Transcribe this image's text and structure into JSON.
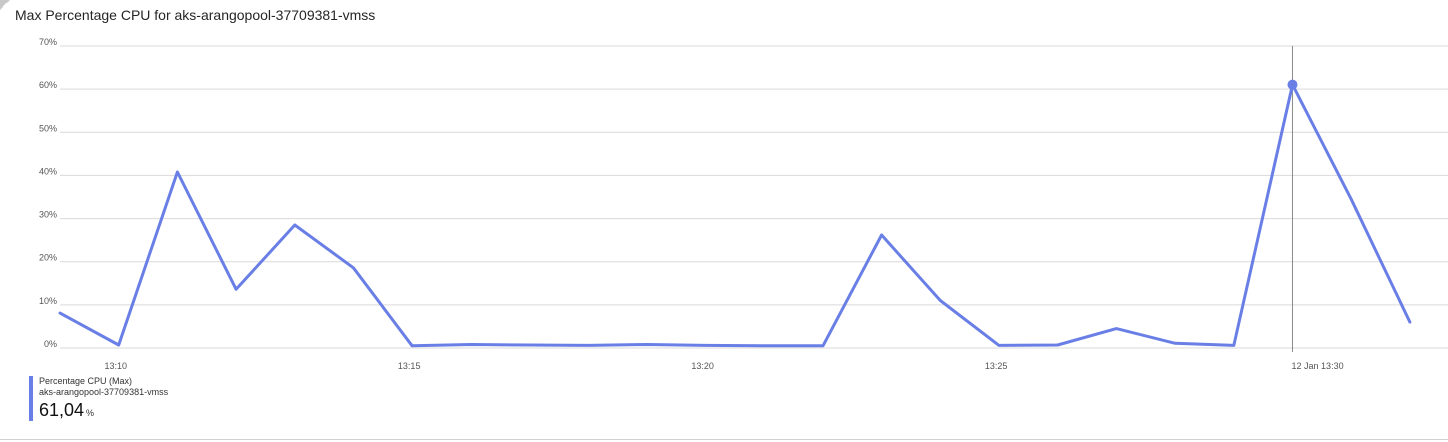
{
  "title": "Max Percentage CPU for aks-arangopool-37709381-vmss",
  "icons": {
    "corner": "pin-icon"
  },
  "colors": {
    "series": "#6a7fe6",
    "grid": "#d9d9d9",
    "crosshair": "#8a8a8a",
    "text": "#252525"
  },
  "legend": {
    "metric": "Percentage CPU (Max)",
    "resource": "aks-arangopool-37709381-vmss",
    "value": "61,04",
    "unit": "%"
  },
  "chart_data": {
    "type": "line",
    "title": "Max Percentage CPU for aks-arangopool-37709381-vmss",
    "xlabel": "",
    "ylabel": "",
    "ylim": [
      0,
      70
    ],
    "y_ticks": [
      0,
      10,
      20,
      30,
      40,
      50,
      60,
      70
    ],
    "y_tick_labels": [
      "0%",
      "10%",
      "20%",
      "30%",
      "40%",
      "50%",
      "60%",
      "70%"
    ],
    "x_ticks": [
      "13:10",
      "13:15",
      "13:20",
      "13:25",
      "12 Jan 13:30"
    ],
    "x_tick_minutes": [
      13.0,
      18.0,
      23.0,
      28.0,
      33.0
    ],
    "xlim_minutes": [
      12.05,
      35.7
    ],
    "grid": true,
    "legend_position": "bottom-left",
    "series": [
      {
        "name": "Percentage CPU (Max)",
        "x": [
          "13:09",
          "13:10",
          "13:11",
          "13:12",
          "13:13",
          "13:14",
          "13:15",
          "13:16",
          "13:17",
          "13:18",
          "13:19",
          "13:20",
          "13:21",
          "13:22",
          "13:23",
          "13:24",
          "13:25",
          "13:26",
          "13:27",
          "13:28",
          "13:29",
          "13:30",
          "13:31",
          "13:32"
        ],
        "x_minutes": [
          12.05,
          13.05,
          14.05,
          15.05,
          16.05,
          17.05,
          18.05,
          19.05,
          20.05,
          21.05,
          22.05,
          23.05,
          24.05,
          25.05,
          26.05,
          27.05,
          28.05,
          29.05,
          30.05,
          31.05,
          32.05,
          33.05,
          34.05,
          35.05
        ],
        "values": [
          8.1,
          0.7,
          40.8,
          13.6,
          28.5,
          18.6,
          0.5,
          0.8,
          0.7,
          0.6,
          0.8,
          0.6,
          0.5,
          0.5,
          26.2,
          11.0,
          0.6,
          0.7,
          4.5,
          1.1,
          0.6,
          61.04,
          34.5,
          6.0
        ]
      }
    ],
    "highlight": {
      "x": "12 Jan 13:30",
      "x_minutes": 33.05,
      "value": 61.04
    }
  }
}
